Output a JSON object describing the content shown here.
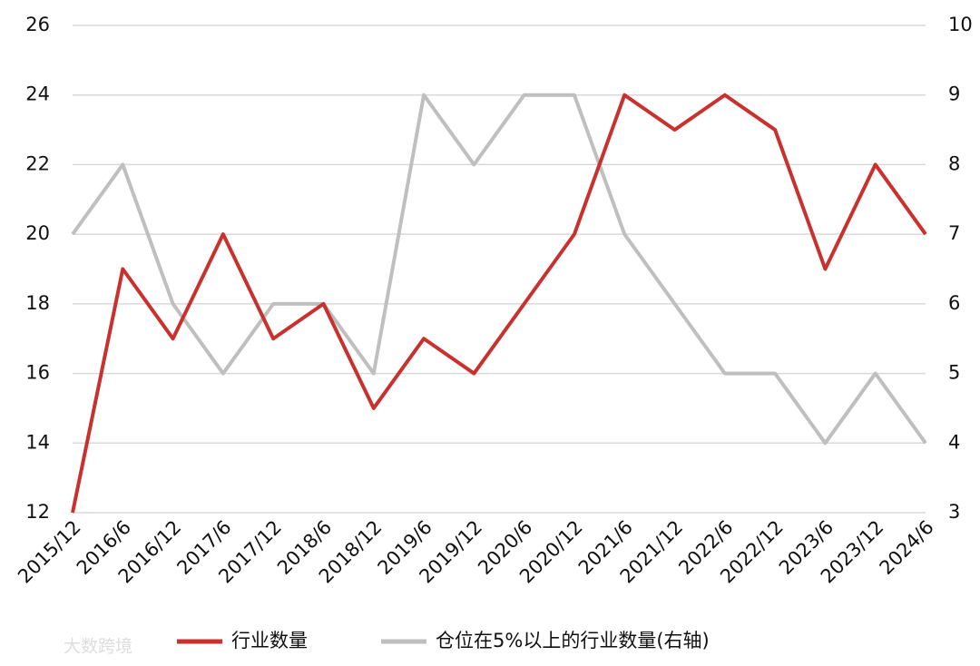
{
  "chart_data": {
    "type": "line",
    "categories": [
      "2015/12",
      "2016/6",
      "2016/12",
      "2017/6",
      "2017/12",
      "2018/6",
      "2018/12",
      "2019/6",
      "2019/12",
      "2020/6",
      "2020/12",
      "2021/6",
      "2021/12",
      "2022/6",
      "2022/12",
      "2023/6",
      "2023/12",
      "2024/6"
    ],
    "series": [
      {
        "name": "行业数量",
        "color": "#c8312e",
        "values": [
          12,
          19,
          17,
          20,
          17,
          18,
          15,
          17,
          16,
          18,
          20,
          24,
          23,
          24,
          23,
          19,
          22,
          20
        ]
      },
      {
        "name": "仓位在5%以上的行业数量(右轴)",
        "color": "#bfbfbf",
        "axis": "y2",
        "values": [
          7,
          8,
          6,
          5,
          6,
          6,
          5,
          9,
          8,
          9,
          9,
          7,
          6,
          5,
          5,
          4,
          5,
          4
        ]
      }
    ],
    "ylim": [
      12,
      26
    ],
    "yticks": [
      12,
      14,
      16,
      18,
      20,
      22,
      24,
      26
    ],
    "y2lim": [
      3,
      10
    ],
    "y2ticks": [
      3,
      4,
      5,
      6,
      7,
      8,
      9,
      10
    ],
    "grid": true,
    "legend": "bottom",
    "watermark": "大数跨境"
  }
}
